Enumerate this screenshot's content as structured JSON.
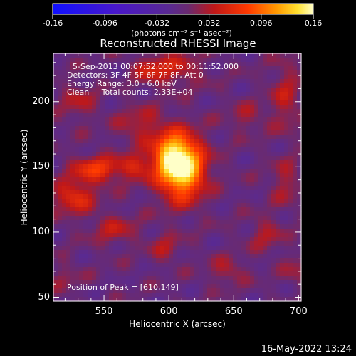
{
  "chart_data": {
    "type": "heatmap",
    "title": "Reconstructed RHESSI Image",
    "xlabel": "Heliocentric X (arcsec)",
    "ylabel": "Heliocentric Y (arcsec)",
    "xlim": [
      511,
      702
    ],
    "ylim": [
      47,
      237
    ],
    "x_ticks": [
      "550",
      "600",
      "650",
      "700"
    ],
    "x_tick_values": [
      550,
      600,
      650,
      700
    ],
    "y_ticks": [
      "50",
      "100",
      "150",
      "200"
    ],
    "y_tick_values": [
      50,
      100,
      150,
      200
    ],
    "colorbar": {
      "min": -0.16,
      "max": 0.16,
      "tick_labels": [
        "-0.16",
        "-0.096",
        "-0.032",
        "0.032",
        "0.096",
        "0.16"
      ],
      "tick_values": [
        -0.16,
        -0.096,
        -0.032,
        0.032,
        0.096,
        0.16
      ],
      "units": "(photons cm⁻² s⁻¹ asec⁻²)"
    },
    "annotations": [
      "5-Sep-2013 00:07:52.000 to 00:11:52.000",
      "Detectors: 3F 4F 5F 6F 7F 8F, Att 0",
      "Energy Range: 3.0 - 6.0 keV",
      "Clean     Total counts: 2.33E+04"
    ],
    "peak_label": "Position of Peak = [610,149]",
    "peak_position": [
      610,
      149
    ],
    "peak_value": 0.16,
    "sources": [
      {
        "x": 610,
        "y": 149,
        "sx": 12,
        "sy": 16,
        "amp": 0.16
      },
      {
        "x": 601,
        "y": 160,
        "sx": 10,
        "sy": 12,
        "amp": 0.07
      },
      {
        "x": 545,
        "y": 148,
        "sx": 13,
        "sy": 7,
        "amp": 0.07
      },
      {
        "x": 527,
        "y": 127,
        "sx": 11,
        "sy": 9,
        "amp": 0.06
      },
      {
        "x": 575,
        "y": 150,
        "sx": 9,
        "sy": 7,
        "amp": 0.045
      },
      {
        "x": 558,
        "y": 102,
        "sx": 12,
        "sy": 8,
        "amp": 0.035
      },
      {
        "x": 578,
        "y": 182,
        "sx": 12,
        "sy": 10,
        "amp": 0.035
      },
      {
        "x": 605,
        "y": 225,
        "sx": 14,
        "sy": 9,
        "amp": 0.04
      },
      {
        "x": 585,
        "y": 225,
        "sx": 9,
        "sy": 7,
        "amp": 0.035
      },
      {
        "x": 690,
        "y": 204,
        "sx": 8,
        "sy": 18,
        "amp": 0.035
      },
      {
        "x": 690,
        "y": 138,
        "sx": 8,
        "sy": 12,
        "amp": 0.03
      },
      {
        "x": 675,
        "y": 98,
        "sx": 9,
        "sy": 9,
        "amp": 0.03
      },
      {
        "x": 645,
        "y": 70,
        "sx": 10,
        "sy": 7,
        "amp": 0.03
      },
      {
        "x": 597,
        "y": 88,
        "sx": 8,
        "sy": 8,
        "amp": 0.03
      },
      {
        "x": 660,
        "y": 188,
        "sx": 10,
        "sy": 8,
        "amp": 0.025
      },
      {
        "x": 530,
        "y": 200,
        "sx": 10,
        "sy": 10,
        "amp": 0.03
      },
      {
        "x": 700,
        "y": 70,
        "sx": 8,
        "sy": 8,
        "amp": 0.025
      },
      {
        "x": 520,
        "y": 65,
        "sx": 8,
        "sy": 8,
        "amp": 0.02
      }
    ]
  },
  "footer": {
    "date": "16-May-2022 13:24"
  }
}
